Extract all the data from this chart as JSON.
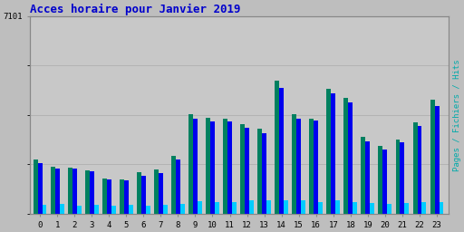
{
  "title": "Acces horaire pour Janvier 2019",
  "ylabel": "Pages / Fichiers / Hits",
  "xlabel_ticks": [
    0,
    1,
    2,
    3,
    4,
    5,
    6,
    7,
    8,
    9,
    10,
    11,
    12,
    13,
    14,
    15,
    16,
    17,
    18,
    19,
    20,
    21,
    22,
    23
  ],
  "ytick_label": "7101",
  "background_color": "#bebebe",
  "plot_bg": "#c8c8c8",
  "title_color": "#0000cc",
  "title_fontsize": 9,
  "bar_width": 0.26,
  "pages": [
    1950,
    1680,
    1660,
    1560,
    1260,
    1240,
    1490,
    1580,
    2080,
    3580,
    3450,
    3420,
    3230,
    3060,
    4780,
    3570,
    3420,
    4480,
    4150,
    2760,
    2440,
    2660,
    3280,
    4100
  ],
  "fichiers": [
    1820,
    1620,
    1610,
    1510,
    1220,
    1200,
    1360,
    1450,
    1960,
    3410,
    3310,
    3310,
    3100,
    2900,
    4510,
    3410,
    3360,
    4310,
    4000,
    2610,
    2300,
    2560,
    3160,
    3860
  ],
  "hits": [
    330,
    360,
    300,
    310,
    280,
    310,
    290,
    310,
    340,
    440,
    420,
    420,
    470,
    470,
    480,
    480,
    420,
    480,
    420,
    380,
    360,
    390,
    420,
    420
  ],
  "pages_color": "#008060",
  "fichiers_color": "#0000ee",
  "hits_color": "#00ccff",
  "ymax": 7101,
  "ylabel_color": "#00aaaa",
  "grid_color": "#aaaaaa",
  "border_color": "#888888"
}
